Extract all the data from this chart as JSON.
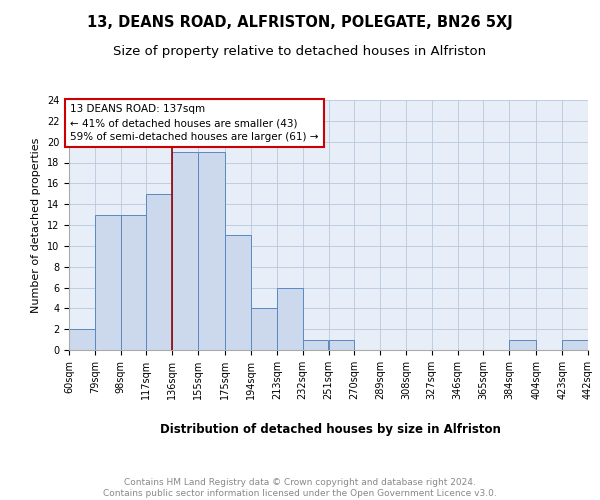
{
  "title": "13, DEANS ROAD, ALFRISTON, POLEGATE, BN26 5XJ",
  "subtitle": "Size of property relative to detached houses in Alfriston",
  "xlabel": "Distribution of detached houses by size in Alfriston",
  "ylabel": "Number of detached properties",
  "bin_edges": [
    60,
    79,
    98,
    117,
    136,
    155,
    175,
    194,
    213,
    232,
    251,
    270,
    289,
    308,
    327,
    346,
    365,
    384,
    404,
    423,
    442
  ],
  "bin_labels": [
    "60sqm",
    "79sqm",
    "98sqm",
    "117sqm",
    "136sqm",
    "155sqm",
    "175sqm",
    "194sqm",
    "213sqm",
    "232sqm",
    "251sqm",
    "270sqm",
    "289sqm",
    "308sqm",
    "327sqm",
    "346sqm",
    "365sqm",
    "384sqm",
    "404sqm",
    "423sqm",
    "442sqm"
  ],
  "counts": [
    2,
    13,
    13,
    15,
    19,
    19,
    11,
    4,
    6,
    1,
    1,
    0,
    0,
    0,
    0,
    0,
    0,
    1,
    0,
    1
  ],
  "bar_facecolor": "#ccd9ec",
  "bar_edgecolor": "#5a89c0",
  "bar_linewidth": 0.7,
  "grid_color": "#b8c8dc",
  "bg_color": "#e8eef8",
  "property_line_color": "#990000",
  "property_line_x": 136,
  "annotation_title": "13 DEANS ROAD: 137sqm",
  "annotation_line1": "← 41% of detached houses are smaller (43)",
  "annotation_line2": "59% of semi-detached houses are larger (61) →",
  "annotation_box_color": "#ffffff",
  "annotation_box_edgecolor": "#cc0000",
  "ylim": [
    0,
    24
  ],
  "yticks": [
    0,
    2,
    4,
    6,
    8,
    10,
    12,
    14,
    16,
    18,
    20,
    22,
    24
  ],
  "footer_line1": "Contains HM Land Registry data © Crown copyright and database right 2024.",
  "footer_line2": "Contains public sector information licensed under the Open Government Licence v3.0.",
  "title_fontsize": 10.5,
  "subtitle_fontsize": 9.5,
  "xlabel_fontsize": 8.5,
  "ylabel_fontsize": 8,
  "tick_fontsize": 7,
  "annotation_fontsize": 7.5,
  "footer_fontsize": 6.5
}
